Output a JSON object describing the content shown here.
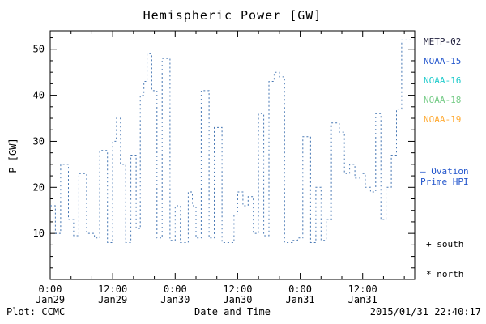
{
  "title": "Hemispheric Power [GW]",
  "footer": {
    "left": "Plot: CCMC",
    "right": "2015/01/31 22:40:17"
  },
  "legend": {
    "satellites": [
      {
        "label": "METP-02",
        "color": "#22223f"
      },
      {
        "label": "NOAA-15",
        "color": "#2255cc"
      },
      {
        "label": "NOAA-16",
        "color": "#22cccc"
      },
      {
        "label": "NOAA-18",
        "color": "#77cc88"
      },
      {
        "label": "NOAA-19",
        "color": "#ffaa33"
      }
    ],
    "ovation": {
      "line1": "– Ovation",
      "line2": "Prime HPI",
      "color": "#2255cc"
    },
    "south": "+ south",
    "north": "* north"
  },
  "chart_data": {
    "type": "line",
    "style": "step-dotted",
    "title": "Hemispheric Power [GW]",
    "xlabel": "Date and Time",
    "ylabel": "P [GW]",
    "ylim": [
      0,
      54
    ],
    "yticks": [
      10,
      20,
      30,
      40,
      50
    ],
    "xlim_hours": [
      0,
      70
    ],
    "xticks": [
      {
        "hours": 0,
        "line1": "0:00",
        "line2": "Jan29"
      },
      {
        "hours": 12,
        "line1": "12:00",
        "line2": "Jan29"
      },
      {
        "hours": 24,
        "line1": "0:00",
        "line2": "Jan30"
      },
      {
        "hours": 36,
        "line1": "12:00",
        "line2": "Jan30"
      },
      {
        "hours": 48,
        "line1": "0:00",
        "line2": "Jan31"
      },
      {
        "hours": 60,
        "line1": "12:00",
        "line2": "Jan31"
      }
    ],
    "grid": false,
    "line_color": "#4878b4",
    "series": [
      {
        "name": "Ovation Prime HPI",
        "points": [
          [
            0,
            16
          ],
          [
            1,
            10
          ],
          [
            2,
            25
          ],
          [
            3.5,
            13
          ],
          [
            4.5,
            9.5
          ],
          [
            5.5,
            23
          ],
          [
            7,
            10
          ],
          [
            8.5,
            9
          ],
          [
            9.5,
            28
          ],
          [
            11,
            8
          ],
          [
            12,
            30
          ],
          [
            12.7,
            35
          ],
          [
            13.5,
            25
          ],
          [
            14.5,
            8
          ],
          [
            15.5,
            27
          ],
          [
            16.5,
            11
          ],
          [
            17.3,
            40
          ],
          [
            18,
            43
          ],
          [
            18.6,
            49
          ],
          [
            19.5,
            41
          ],
          [
            20.5,
            9
          ],
          [
            21.5,
            48
          ],
          [
            23,
            8.5
          ],
          [
            24,
            16
          ],
          [
            25,
            8
          ],
          [
            26.5,
            19
          ],
          [
            27.3,
            16
          ],
          [
            28,
            9
          ],
          [
            29,
            41
          ],
          [
            30.5,
            9
          ],
          [
            31.5,
            33
          ],
          [
            33,
            8
          ],
          [
            34.5,
            8
          ],
          [
            35.3,
            14
          ],
          [
            36,
            19
          ],
          [
            37,
            16
          ],
          [
            38,
            18
          ],
          [
            39,
            10
          ],
          [
            40,
            36
          ],
          [
            41,
            9.5
          ],
          [
            42,
            43
          ],
          [
            43,
            45
          ],
          [
            44,
            44
          ],
          [
            45,
            8
          ],
          [
            46.5,
            8.5
          ],
          [
            47.5,
            9
          ],
          [
            48.5,
            31
          ],
          [
            50,
            8
          ],
          [
            51,
            20
          ],
          [
            52,
            8.5
          ],
          [
            53,
            13
          ],
          [
            54,
            34
          ],
          [
            55.5,
            32
          ],
          [
            56.5,
            23
          ],
          [
            57.5,
            25
          ],
          [
            58.5,
            22
          ],
          [
            59.5,
            23
          ],
          [
            60.5,
            20
          ],
          [
            61.5,
            19
          ],
          [
            62.5,
            36
          ],
          [
            63.5,
            13
          ],
          [
            64.5,
            20
          ],
          [
            65.5,
            27
          ],
          [
            66.5,
            37
          ],
          [
            67.5,
            52
          ],
          [
            68.5,
            52
          ]
        ]
      }
    ]
  }
}
